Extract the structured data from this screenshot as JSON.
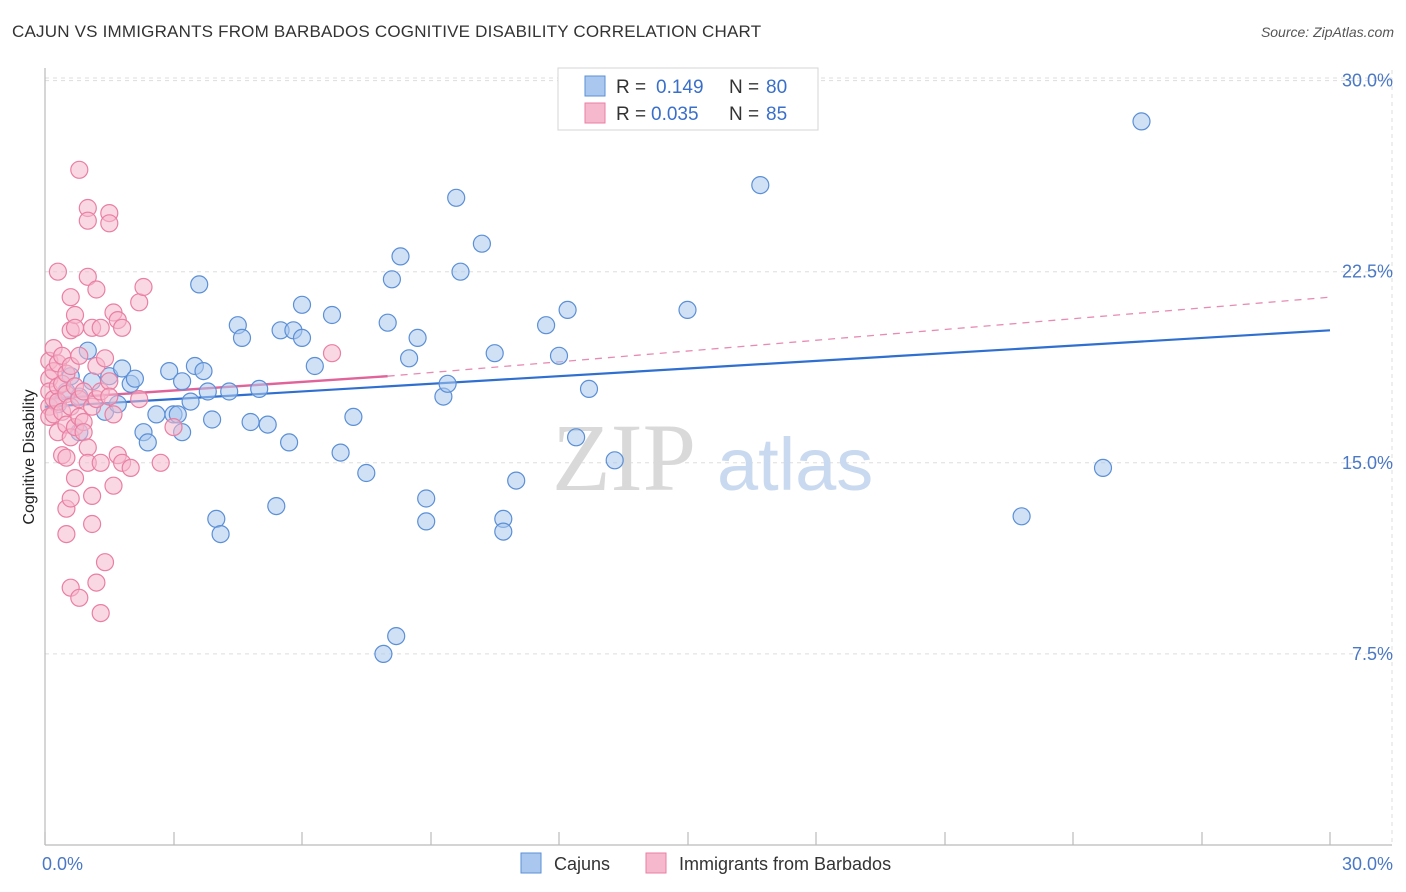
{
  "header": {
    "title": "CAJUN VS IMMIGRANTS FROM BARBADOS COGNITIVE DISABILITY CORRELATION CHART",
    "source": "Source: ZipAtlas.com"
  },
  "watermark": {
    "zip": "ZIP",
    "atlas": "atlas"
  },
  "colors": {
    "blue_fill": "#aac8ef",
    "blue_stroke": "#5b8fd6",
    "blue_line": "#2f6fcf",
    "pink_fill": "#f6b8cc",
    "pink_stroke": "#e97fa3",
    "pink_line": "#e0649a",
    "grid": "#dddddd",
    "axis_text": "#4a78c4"
  },
  "legend": {
    "rows": [
      {
        "r_label": "R =",
        "r_value": "0.149",
        "n_label": "N =",
        "n_value": "80"
      },
      {
        "r_label": "R =",
        "r_value": "0.035",
        "n_label": "N =",
        "n_value": "85"
      }
    ]
  },
  "bottom_legend": {
    "items": [
      "Cajuns",
      "Immigrants from Barbados"
    ]
  },
  "chart_data": {
    "type": "scatter",
    "title": "CAJUN VS IMMIGRANTS FROM BARBADOS COGNITIVE DISABILITY CORRELATION CHART",
    "xlabel": "",
    "ylabel": "Cognitive Disability",
    "xlim": [
      0,
      30
    ],
    "ylim": [
      0,
      31
    ],
    "x_tick_labels": [
      "0.0%",
      "30.0%"
    ],
    "y_ticks": [
      7.5,
      15.0,
      22.5,
      30.0
    ],
    "y_tick_labels": [
      "7.5%",
      "15.0%",
      "22.5%",
      "30.0%"
    ],
    "grid": true,
    "series": [
      {
        "name": "Cajuns",
        "R": 0.149,
        "N": 80,
        "trend": {
          "x0": 0,
          "y0": 17.2,
          "x1": 30,
          "y1": 20.2,
          "style": "solid"
        },
        "points": [
          [
            0.3,
            17.3
          ],
          [
            0.5,
            17.8
          ],
          [
            0.6,
            18.4
          ],
          [
            0.8,
            16.2
          ],
          [
            0.8,
            17.6
          ],
          [
            1.0,
            19.4
          ],
          [
            1.1,
            18.2
          ],
          [
            1.4,
            17.0
          ],
          [
            1.5,
            18.4
          ],
          [
            1.7,
            17.3
          ],
          [
            1.8,
            18.7
          ],
          [
            2.0,
            18.1
          ],
          [
            2.1,
            18.3
          ],
          [
            2.3,
            16.2
          ],
          [
            2.4,
            15.8
          ],
          [
            2.6,
            16.9
          ],
          [
            2.9,
            18.6
          ],
          [
            3.0,
            16.9
          ],
          [
            3.1,
            16.9
          ],
          [
            3.2,
            18.2
          ],
          [
            3.2,
            16.2
          ],
          [
            3.4,
            17.4
          ],
          [
            3.5,
            18.8
          ],
          [
            3.6,
            22.0
          ],
          [
            3.7,
            18.6
          ],
          [
            3.8,
            17.8
          ],
          [
            3.9,
            16.7
          ],
          [
            4.0,
            12.8
          ],
          [
            4.1,
            12.2
          ],
          [
            4.3,
            17.8
          ],
          [
            4.5,
            20.4
          ],
          [
            4.6,
            19.9
          ],
          [
            4.8,
            16.6
          ],
          [
            5.0,
            17.9
          ],
          [
            5.2,
            16.5
          ],
          [
            5.4,
            13.3
          ],
          [
            5.5,
            20.2
          ],
          [
            5.7,
            15.8
          ],
          [
            5.8,
            20.2
          ],
          [
            6.0,
            19.9
          ],
          [
            6.0,
            21.2
          ],
          [
            6.3,
            18.8
          ],
          [
            6.7,
            20.8
          ],
          [
            6.9,
            15.4
          ],
          [
            7.2,
            16.8
          ],
          [
            7.5,
            14.6
          ],
          [
            7.9,
            7.5
          ],
          [
            8.0,
            20.5
          ],
          [
            8.1,
            22.2
          ],
          [
            8.2,
            8.2
          ],
          [
            8.3,
            23.1
          ],
          [
            8.5,
            19.1
          ],
          [
            8.7,
            19.9
          ],
          [
            8.9,
            13.6
          ],
          [
            8.9,
            12.7
          ],
          [
            9.3,
            17.6
          ],
          [
            9.4,
            18.1
          ],
          [
            9.6,
            25.4
          ],
          [
            9.7,
            22.5
          ],
          [
            10.2,
            23.6
          ],
          [
            10.5,
            19.3
          ],
          [
            10.7,
            12.8
          ],
          [
            10.7,
            12.3
          ],
          [
            11.0,
            14.3
          ],
          [
            11.7,
            20.4
          ],
          [
            12.0,
            19.2
          ],
          [
            12.2,
            21.0
          ],
          [
            12.4,
            16.0
          ],
          [
            12.7,
            17.9
          ],
          [
            13.3,
            15.1
          ],
          [
            15.0,
            21.0
          ],
          [
            16.7,
            25.9
          ],
          [
            22.8,
            12.9
          ],
          [
            24.7,
            14.8
          ],
          [
            25.6,
            28.4
          ]
        ]
      },
      {
        "name": "Immigrants from Barbados",
        "R": 0.035,
        "N": 85,
        "trend": {
          "x0": 0,
          "y0": 17.5,
          "x1": 8.0,
          "y1": 18.4,
          "style": "solid",
          "extension": {
            "x0": 8.0,
            "y0": 18.4,
            "x1": 30,
            "y1": 21.5,
            "style": "dashed"
          }
        },
        "points": [
          [
            0.1,
            19.0
          ],
          [
            0.1,
            18.3
          ],
          [
            0.1,
            17.8
          ],
          [
            0.1,
            17.2
          ],
          [
            0.1,
            16.8
          ],
          [
            0.2,
            19.5
          ],
          [
            0.2,
            18.6
          ],
          [
            0.2,
            17.5
          ],
          [
            0.2,
            16.9
          ],
          [
            0.3,
            22.5
          ],
          [
            0.3,
            18.9
          ],
          [
            0.3,
            18.0
          ],
          [
            0.3,
            17.4
          ],
          [
            0.3,
            16.2
          ],
          [
            0.4,
            19.2
          ],
          [
            0.4,
            18.1
          ],
          [
            0.4,
            17.0
          ],
          [
            0.4,
            15.3
          ],
          [
            0.5,
            18.5
          ],
          [
            0.5,
            17.7
          ],
          [
            0.5,
            16.5
          ],
          [
            0.5,
            15.2
          ],
          [
            0.5,
            13.2
          ],
          [
            0.5,
            12.2
          ],
          [
            0.6,
            21.5
          ],
          [
            0.6,
            20.2
          ],
          [
            0.6,
            18.8
          ],
          [
            0.6,
            17.2
          ],
          [
            0.6,
            16.0
          ],
          [
            0.6,
            13.6
          ],
          [
            0.6,
            10.1
          ],
          [
            0.7,
            20.8
          ],
          [
            0.7,
            20.3
          ],
          [
            0.7,
            18.0
          ],
          [
            0.7,
            16.4
          ],
          [
            0.7,
            14.4
          ],
          [
            0.8,
            26.5
          ],
          [
            0.8,
            19.2
          ],
          [
            0.8,
            17.5
          ],
          [
            0.8,
            16.8
          ],
          [
            0.8,
            9.7
          ],
          [
            0.9,
            17.8
          ],
          [
            0.9,
            16.6
          ],
          [
            0.9,
            16.2
          ],
          [
            1.0,
            25.0
          ],
          [
            1.0,
            24.5
          ],
          [
            1.0,
            22.3
          ],
          [
            1.0,
            15.6
          ],
          [
            1.0,
            15.0
          ],
          [
            1.1,
            20.3
          ],
          [
            1.1,
            17.2
          ],
          [
            1.1,
            13.7
          ],
          [
            1.1,
            12.6
          ],
          [
            1.2,
            21.8
          ],
          [
            1.2,
            18.8
          ],
          [
            1.2,
            17.5
          ],
          [
            1.2,
            10.3
          ],
          [
            1.3,
            20.3
          ],
          [
            1.3,
            17.8
          ],
          [
            1.3,
            15.0
          ],
          [
            1.3,
            9.1
          ],
          [
            1.4,
            19.1
          ],
          [
            1.4,
            11.1
          ],
          [
            1.5,
            24.8
          ],
          [
            1.5,
            24.4
          ],
          [
            1.5,
            18.2
          ],
          [
            1.5,
            17.6
          ],
          [
            1.6,
            20.9
          ],
          [
            1.6,
            16.9
          ],
          [
            1.6,
            14.1
          ],
          [
            1.7,
            20.6
          ],
          [
            1.7,
            15.3
          ],
          [
            1.8,
            20.3
          ],
          [
            1.8,
            15.0
          ],
          [
            2.0,
            14.8
          ],
          [
            2.2,
            17.5
          ],
          [
            2.2,
            21.3
          ],
          [
            2.3,
            21.9
          ],
          [
            2.7,
            15.0
          ],
          [
            3.0,
            16.4
          ],
          [
            6.7,
            19.3
          ]
        ]
      }
    ]
  }
}
